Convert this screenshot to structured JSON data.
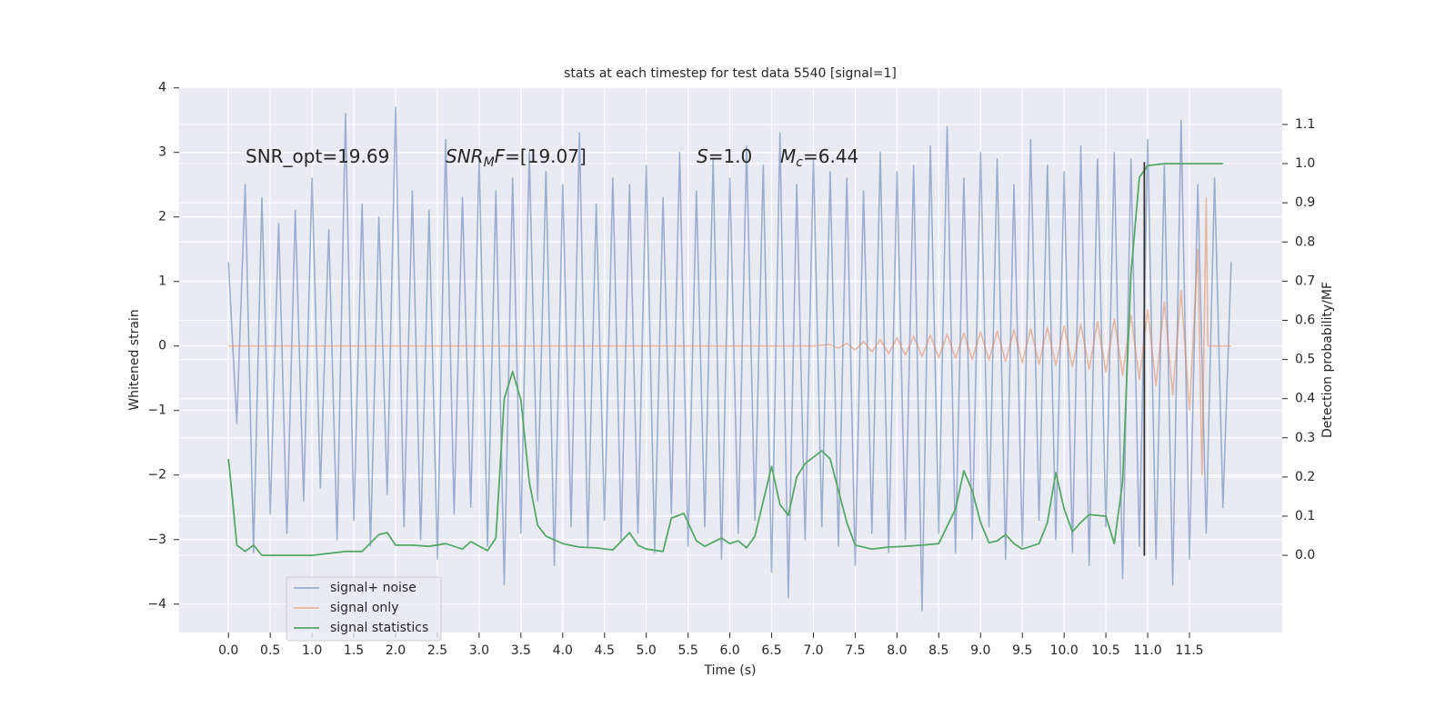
{
  "chart_data": {
    "type": "line",
    "title": "stats at each timestep for test data 5540 [signal=1]",
    "xlabel": "Time (s)",
    "ylabel": "Whitened strain",
    "y2label": "Detection probability/MF",
    "xlim": [
      -0.59,
      12.61
    ],
    "ylim": [
      -4.44,
      4.01
    ],
    "y2lim": [
      -0.197,
      1.195
    ],
    "xticks": [
      {
        "value": 0,
        "label": "0.0"
      },
      {
        "value": 0.5,
        "label": "0.5"
      },
      {
        "value": 1,
        "label": "1.0"
      },
      {
        "value": 1.5,
        "label": "1.5"
      },
      {
        "value": 2,
        "label": "2.0"
      },
      {
        "value": 2.5,
        "label": "2.5"
      },
      {
        "value": 3,
        "label": "3.0"
      },
      {
        "value": 3.5,
        "label": "3.5"
      },
      {
        "value": 4,
        "label": "4.0"
      },
      {
        "value": 4.5,
        "label": "4.5"
      },
      {
        "value": 5,
        "label": "5.0"
      },
      {
        "value": 5.5,
        "label": "5.5"
      },
      {
        "value": 6,
        "label": "6.0"
      },
      {
        "value": 6.5,
        "label": "6.5"
      },
      {
        "value": 7,
        "label": "7.0"
      },
      {
        "value": 7.5,
        "label": "7.5"
      },
      {
        "value": 8,
        "label": "8.0"
      },
      {
        "value": 8.5,
        "label": "8.5"
      },
      {
        "value": 9,
        "label": "9.0"
      },
      {
        "value": 9.5,
        "label": "9.5"
      },
      {
        "value": 10,
        "label": "10.0"
      },
      {
        "value": 10.5,
        "label": "10.5"
      },
      {
        "value": 11,
        "label": "11.0"
      },
      {
        "value": 11.5,
        "label": "11.5"
      }
    ],
    "yticks": [
      {
        "value": -4,
        "label": "−4"
      },
      {
        "value": -3,
        "label": "−3"
      },
      {
        "value": -2,
        "label": "−2"
      },
      {
        "value": -1,
        "label": "−1"
      },
      0,
      1,
      2,
      3,
      4
    ],
    "y2ticks": [
      {
        "value": 0,
        "label": "0.0"
      },
      0.1,
      0.2,
      0.3,
      0.4,
      0.5,
      0.6,
      0.7,
      0.8,
      0.9,
      {
        "value": 1,
        "label": "1.0"
      },
      1.1
    ],
    "grid": true,
    "legend": "lower left",
    "series": [
      {
        "name": "signal+ noise",
        "color": "#4c72b0",
        "opacity": 0.5,
        "x": [
          0.0,
          0.1,
          0.2,
          0.3,
          0.4,
          0.5,
          0.6,
          0.7,
          0.8,
          0.9,
          1.0,
          1.1,
          1.2,
          1.3,
          1.4,
          1.5,
          1.6,
          1.7,
          1.8,
          1.9,
          2.0,
          2.1,
          2.2,
          2.3,
          2.4,
          2.5,
          2.6,
          2.7,
          2.8,
          2.9,
          3.0,
          3.1,
          3.2,
          3.3,
          3.4,
          3.5,
          3.6,
          3.7,
          3.8,
          3.9,
          4.0,
          4.1,
          4.2,
          4.3,
          4.4,
          4.5,
          4.6,
          4.7,
          4.8,
          4.9,
          5.0,
          5.1,
          5.2,
          5.3,
          5.4,
          5.5,
          5.6,
          5.7,
          5.8,
          5.9,
          6.0,
          6.1,
          6.2,
          6.3,
          6.4,
          6.5,
          6.6,
          6.7,
          6.8,
          6.9,
          7.0,
          7.1,
          7.2,
          7.3,
          7.4,
          7.5,
          7.6,
          7.7,
          7.8,
          7.9,
          8.0,
          8.1,
          8.2,
          8.3,
          8.4,
          8.5,
          8.6,
          8.7,
          8.8,
          8.9,
          9.0,
          9.1,
          9.2,
          9.3,
          9.4,
          9.5,
          9.6,
          9.7,
          9.8,
          9.9,
          10.0,
          10.1,
          10.2,
          10.3,
          10.4,
          10.5,
          10.6,
          10.7,
          10.8,
          10.9,
          11.0,
          11.1,
          11.2,
          11.3,
          11.4,
          11.5,
          11.6,
          11.7,
          11.8,
          11.9,
          12.0
        ],
        "values": [
          1.3,
          -1.2,
          2.5,
          -3.2,
          2.3,
          -2.6,
          1.9,
          -2.9,
          2.1,
          -2.4,
          2.6,
          -2.2,
          1.8,
          -3.0,
          3.6,
          -2.7,
          2.2,
          -3.1,
          2.0,
          -2.3,
          3.7,
          -2.8,
          2.4,
          -3.0,
          2.1,
          -3.3,
          3.2,
          -2.6,
          2.3,
          -2.5,
          2.9,
          -3.1,
          2.4,
          -3.7,
          2.6,
          -2.9,
          3.0,
          -2.4,
          2.7,
          -3.4,
          2.5,
          -2.8,
          3.3,
          -3.1,
          2.2,
          -2.7,
          2.6,
          -3.0,
          2.5,
          -2.9,
          2.8,
          -3.2,
          2.3,
          -2.6,
          3.0,
          -3.1,
          2.4,
          -2.8,
          2.9,
          -3.3,
          2.6,
          -2.9,
          3.1,
          -2.7,
          2.8,
          -3.5,
          3.3,
          -3.9,
          2.5,
          -3.0,
          2.9,
          -2.8,
          2.7,
          -3.1,
          2.6,
          -3.4,
          2.4,
          -2.9,
          3.0,
          -3.2,
          2.7,
          -3.0,
          2.8,
          -4.1,
          3.1,
          -2.9,
          3.4,
          -3.2,
          2.6,
          -3.0,
          3.0,
          -2.8,
          2.9,
          -3.3,
          2.5,
          -3.1,
          3.2,
          -2.7,
          2.8,
          -3.0,
          2.7,
          -3.2,
          3.1,
          -3.4,
          2.9,
          -2.8,
          3.0,
          -3.6,
          2.9,
          -3.1,
          3.2,
          -3.3,
          2.8,
          -3.7,
          3.5,
          -3.3,
          2.5,
          -2.9,
          2.6,
          -2.5,
          1.3
        ]
      },
      {
        "name": "signal only",
        "color": "#dd8452",
        "opacity": 0.5,
        "x": [
          0.0,
          7.0,
          7.2,
          7.3,
          7.4,
          7.5,
          7.6,
          7.7,
          7.8,
          7.9,
          8.0,
          8.1,
          8.2,
          8.3,
          8.4,
          8.5,
          8.6,
          8.7,
          8.8,
          8.9,
          9.0,
          9.1,
          9.2,
          9.3,
          9.4,
          9.5,
          9.6,
          9.7,
          9.8,
          9.9,
          10.0,
          10.1,
          10.2,
          10.3,
          10.4,
          10.5,
          10.6,
          10.7,
          10.8,
          10.9,
          11.0,
          11.1,
          11.2,
          11.3,
          11.4,
          11.5,
          11.6,
          11.65,
          11.7,
          11.72,
          12.0
        ],
        "values": [
          0,
          0,
          0.02,
          -0.03,
          0.04,
          -0.06,
          0.07,
          -0.09,
          0.1,
          -0.12,
          0.13,
          -0.14,
          0.15,
          -0.16,
          0.17,
          -0.18,
          0.18,
          -0.19,
          0.2,
          -0.21,
          0.22,
          -0.22,
          0.23,
          -0.24,
          0.25,
          -0.26,
          0.27,
          -0.28,
          0.29,
          -0.3,
          0.31,
          -0.32,
          0.34,
          -0.36,
          0.38,
          -0.4,
          0.42,
          -0.45,
          0.48,
          -0.52,
          0.56,
          -0.61,
          0.68,
          -0.76,
          0.86,
          -1.0,
          1.5,
          -2.0,
          2.3,
          0,
          0
        ]
      },
      {
        "name": "signal statistics",
        "color": "#55a868",
        "opacity": 1,
        "axis": "y2",
        "x": [
          0.0,
          0.05,
          0.1,
          0.2,
          0.3,
          0.4,
          0.6,
          1.0,
          1.4,
          1.6,
          1.8,
          1.9,
          2.0,
          2.2,
          2.4,
          2.6,
          2.8,
          2.9,
          3.1,
          3.2,
          3.3,
          3.4,
          3.5,
          3.6,
          3.7,
          3.8,
          4.0,
          4.2,
          4.4,
          4.6,
          4.8,
          4.9,
          5.0,
          5.2,
          5.3,
          5.45,
          5.6,
          5.7,
          5.9,
          6.0,
          6.1,
          6.2,
          6.3,
          6.5,
          6.6,
          6.7,
          6.8,
          6.9,
          7.1,
          7.2,
          7.4,
          7.5,
          7.7,
          7.9,
          8.1,
          8.3,
          8.5,
          8.7,
          8.8,
          8.9,
          9.0,
          9.1,
          9.2,
          9.3,
          9.4,
          9.5,
          9.7,
          9.8,
          9.9,
          10.0,
          10.1,
          10.2,
          10.3,
          10.5,
          10.6,
          10.7,
          10.8,
          10.9,
          11.0,
          11.2,
          11.9
        ],
        "values": [
          0.246,
          0.14,
          0.026,
          0.01,
          0.026,
          0.0,
          0.0,
          0.0,
          0.01,
          0.01,
          0.053,
          0.058,
          0.026,
          0.026,
          0.023,
          0.03,
          0.016,
          0.035,
          0.012,
          0.044,
          0.4,
          0.469,
          0.397,
          0.188,
          0.077,
          0.049,
          0.03,
          0.021,
          0.019,
          0.014,
          0.058,
          0.026,
          0.016,
          0.01,
          0.095,
          0.107,
          0.037,
          0.023,
          0.044,
          0.03,
          0.037,
          0.019,
          0.049,
          0.227,
          0.13,
          0.102,
          0.2,
          0.234,
          0.267,
          0.246,
          0.084,
          0.026,
          0.016,
          0.021,
          0.023,
          0.026,
          0.03,
          0.118,
          0.216,
          0.165,
          0.084,
          0.032,
          0.037,
          0.053,
          0.03,
          0.016,
          0.03,
          0.084,
          0.211,
          0.118,
          0.06,
          0.084,
          0.104,
          0.1,
          0.03,
          0.188,
          0.72,
          0.965,
          0.995,
          1.0,
          1.0
        ]
      }
    ],
    "vlines": [
      {
        "x": 10.96,
        "ymin": -3.25,
        "ymax": 2.85,
        "color": "#333333"
      }
    ],
    "annotations": [
      {
        "parts": [
          {
            "text": "SNR_opt=19.69"
          }
        ]
      },
      {
        "parts": [
          {
            "text": "SNR",
            "italic": true
          },
          {
            "text": "M",
            "italic": true,
            "sub": true
          },
          {
            "text": "F",
            "italic": true
          },
          {
            "text": "=[19.07]"
          }
        ]
      },
      {
        "parts": [
          {
            "text": "S",
            "italic": true
          },
          {
            "text": "=1.0"
          }
        ]
      },
      {
        "parts": [
          {
            "text": "M",
            "italic": true
          },
          {
            "text": "c",
            "italic": true,
            "sub": true
          },
          {
            "text": "=6.44"
          }
        ]
      }
    ]
  }
}
